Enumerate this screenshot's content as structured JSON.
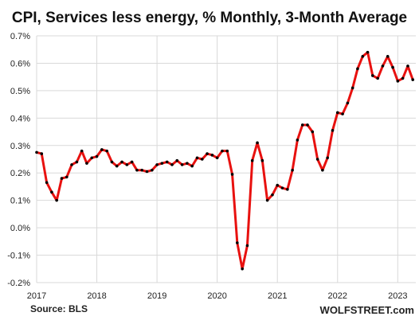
{
  "chart_data": {
    "type": "line",
    "title": "CPI, Services less energy, % Monthly, 3-Month Average",
    "source": "Source: BLS",
    "watermark": "WOLFSTREET.com",
    "xlabel": "",
    "ylabel": "",
    "x_ticks": [
      "2017",
      "2018",
      "2019",
      "2020",
      "2021",
      "2022",
      "2023"
    ],
    "y_ticks": [
      "0.7%",
      "0.6%",
      "0.5%",
      "0.4%",
      "0.3%",
      "0.2%",
      "0.1%",
      "0.0%",
      "-0.1%",
      "-0.2%"
    ],
    "ylim": [
      -0.2,
      0.7
    ],
    "xlim": [
      2017.0,
      2023.3
    ],
    "grid": true,
    "line_color": "#e8110f",
    "marker_color": "#000000",
    "series": [
      {
        "x": [
          2017.0,
          2017.083,
          2017.167,
          2017.25,
          2017.333,
          2017.417,
          2017.5,
          2017.583,
          2017.667,
          2017.75,
          2017.833,
          2017.917,
          2018.0,
          2018.083,
          2018.167,
          2018.25,
          2018.333,
          2018.417,
          2018.5,
          2018.583,
          2018.667,
          2018.75,
          2018.833,
          2018.917,
          2019.0,
          2019.083,
          2019.167,
          2019.25,
          2019.333,
          2019.417,
          2019.5,
          2019.583,
          2019.667,
          2019.75,
          2019.833,
          2019.917,
          2020.0,
          2020.083,
          2020.167,
          2020.25,
          2020.333,
          2020.417,
          2020.5,
          2020.583,
          2020.667,
          2020.75,
          2020.833,
          2020.917,
          2021.0,
          2021.083,
          2021.167,
          2021.25,
          2021.333,
          2021.417,
          2021.5,
          2021.583,
          2021.667,
          2021.75,
          2021.833,
          2021.917,
          2022.0,
          2022.083,
          2022.167,
          2022.25,
          2022.333,
          2022.417,
          2022.5,
          2022.583,
          2022.667,
          2022.75,
          2022.833,
          2022.917,
          2023.0,
          2023.083,
          2023.167,
          2023.25
        ],
        "values": [
          0.275,
          0.27,
          0.165,
          0.13,
          0.1,
          0.18,
          0.185,
          0.23,
          0.24,
          0.28,
          0.235,
          0.255,
          0.26,
          0.285,
          0.28,
          0.24,
          0.225,
          0.24,
          0.23,
          0.24,
          0.21,
          0.21,
          0.205,
          0.21,
          0.23,
          0.235,
          0.24,
          0.23,
          0.245,
          0.23,
          0.235,
          0.225,
          0.255,
          0.25,
          0.27,
          0.265,
          0.255,
          0.28,
          0.28,
          0.195,
          -0.055,
          -0.15,
          -0.065,
          0.245,
          0.31,
          0.245,
          0.1,
          0.12,
          0.155,
          0.145,
          0.14,
          0.21,
          0.32,
          0.375,
          0.375,
          0.35,
          0.25,
          0.21,
          0.255,
          0.355,
          0.42,
          0.415,
          0.455,
          0.51,
          0.58,
          0.625,
          0.64,
          0.555,
          0.545,
          0.59,
          0.625,
          0.585,
          0.535,
          0.545,
          0.59,
          0.54
        ]
      }
    ]
  }
}
